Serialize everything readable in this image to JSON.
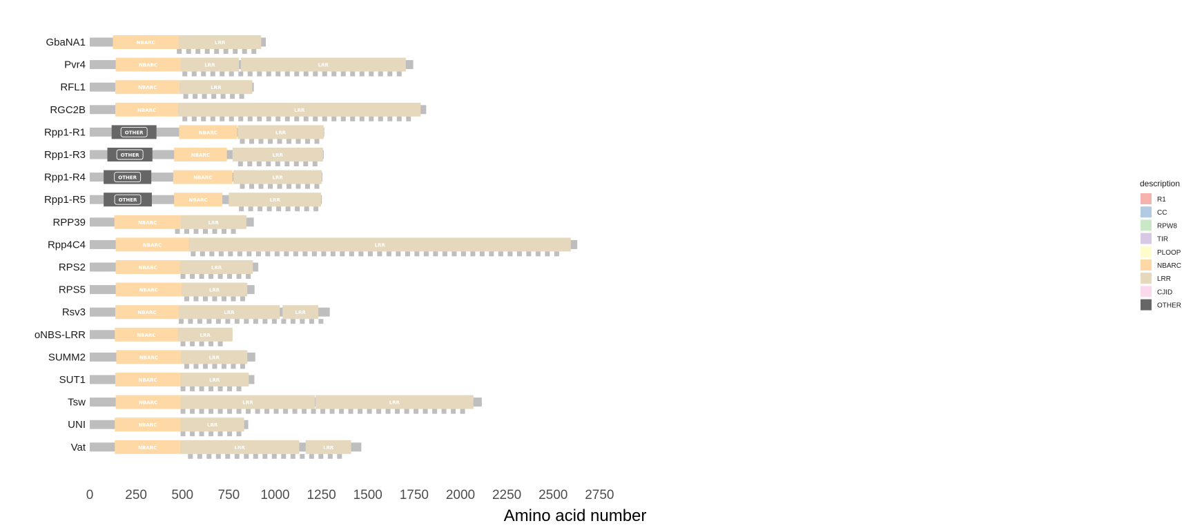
{
  "chart_data": {
    "type": "bar",
    "xlabel": "Amino acid number",
    "xlim": [
      0,
      2800
    ],
    "x_ticks": [
      0,
      250,
      500,
      750,
      1000,
      1250,
      1500,
      1750,
      2000,
      2250,
      2500,
      2750
    ],
    "legend_title": "description",
    "legend": [
      {
        "name": "R1",
        "color": "#F6B3AE"
      },
      {
        "name": "CC",
        "color": "#B2CBE3"
      },
      {
        "name": "RPW8",
        "color": "#C9E8C5"
      },
      {
        "name": "TIR",
        "color": "#D9C8E3"
      },
      {
        "name": "PLOOP",
        "color": "#FEFCCA"
      },
      {
        "name": "NBARC",
        "color": "#FED9A6"
      },
      {
        "name": "LRR",
        "color": "#E5D8BD"
      },
      {
        "name": "CJID",
        "color": "#FAD9EC"
      },
      {
        "name": "OTHER",
        "color": "#666666"
      }
    ],
    "colors": {
      "backbone": "#BEBEBE",
      "NBARC": "#FED9A6",
      "LRR": "#E5D8BD",
      "OTHER": "#666666",
      "repeat": "#BEBEBE"
    },
    "proteins": [
      {
        "name": "GbaNA1",
        "length": 950,
        "domains": [
          {
            "type": "NBARC",
            "start": 125,
            "end": 480
          },
          {
            "type": "LRR",
            "start": 480,
            "end": 925
          }
        ],
        "repeats": [
          [
            470,
            925
          ]
        ]
      },
      {
        "name": "Pvr4",
        "length": 1745,
        "domains": [
          {
            "type": "NBARC",
            "start": 140,
            "end": 490
          },
          {
            "type": "LRR",
            "start": 490,
            "end": 805
          },
          {
            "type": "LRR",
            "start": 815,
            "end": 1705
          }
        ],
        "repeats": [
          [
            500,
            1685
          ]
        ]
      },
      {
        "name": "RFL1",
        "length": 885,
        "domains": [
          {
            "type": "NBARC",
            "start": 138,
            "end": 485
          },
          {
            "type": "LRR",
            "start": 485,
            "end": 877
          }
        ],
        "repeats": [
          [
            505,
            865
          ]
        ]
      },
      {
        "name": "RGC2B",
        "length": 1815,
        "domains": [
          {
            "type": "NBARC",
            "start": 138,
            "end": 478
          },
          {
            "type": "LRR",
            "start": 478,
            "end": 1785
          }
        ],
        "repeats": [
          [
            500,
            1760
          ]
        ]
      },
      {
        "name": "Rpp1-R1",
        "length": 1265,
        "domains": [
          {
            "type": "OTHER",
            "start": 118,
            "end": 360
          },
          {
            "type": "NBARC",
            "start": 482,
            "end": 795
          },
          {
            "type": "LRR",
            "start": 798,
            "end": 1262
          }
        ],
        "repeats": [
          [
            810,
            1250
          ]
        ]
      },
      {
        "name": "Rpp1-R3",
        "length": 1262,
        "domains": [
          {
            "type": "OTHER",
            "start": 95,
            "end": 338
          },
          {
            "type": "NBARC",
            "start": 455,
            "end": 740
          },
          {
            "type": "LRR",
            "start": 770,
            "end": 1258
          }
        ],
        "repeats": [
          [
            800,
            1245
          ]
        ]
      },
      {
        "name": "Rpp1-R4",
        "length": 1255,
        "domains": [
          {
            "type": "OTHER",
            "start": 75,
            "end": 332
          },
          {
            "type": "NBARC",
            "start": 450,
            "end": 770
          },
          {
            "type": "LRR",
            "start": 775,
            "end": 1252
          }
        ],
        "repeats": [
          [
            810,
            1240
          ]
        ]
      },
      {
        "name": "Rpp1-R5",
        "length": 1252,
        "domains": [
          {
            "type": "OTHER",
            "start": 75,
            "end": 335
          },
          {
            "type": "NBARC",
            "start": 455,
            "end": 715
          },
          {
            "type": "LRR",
            "start": 750,
            "end": 1248
          }
        ],
        "repeats": [
          [
            805,
            1235
          ]
        ]
      },
      {
        "name": "RPP39",
        "length": 885,
        "domains": [
          {
            "type": "NBARC",
            "start": 133,
            "end": 490
          },
          {
            "type": "LRR",
            "start": 490,
            "end": 845
          }
        ],
        "repeats": [
          [
            460,
            830
          ]
        ]
      },
      {
        "name": "Rpp4C4",
        "length": 2630,
        "domains": [
          {
            "type": "NBARC",
            "start": 140,
            "end": 535
          },
          {
            "type": "LRR",
            "start": 535,
            "end": 2595
          }
        ],
        "repeats": [
          [
            545,
            2580
          ]
        ]
      },
      {
        "name": "RPS2",
        "length": 909,
        "domains": [
          {
            "type": "NBARC",
            "start": 140,
            "end": 487
          },
          {
            "type": "LRR",
            "start": 487,
            "end": 880
          }
        ],
        "repeats": [
          [
            490,
            875
          ]
        ]
      },
      {
        "name": "RPS5",
        "length": 889,
        "domains": [
          {
            "type": "NBARC",
            "start": 140,
            "end": 495
          },
          {
            "type": "LRR",
            "start": 495,
            "end": 850
          }
        ],
        "repeats": [
          [
            510,
            860
          ]
        ]
      },
      {
        "name": "Rsv3",
        "length": 1295,
        "domains": [
          {
            "type": "NBARC",
            "start": 138,
            "end": 480
          },
          {
            "type": "LRR",
            "start": 480,
            "end": 1025
          },
          {
            "type": "LRR",
            "start": 1040,
            "end": 1233
          }
        ],
        "repeats": [
          [
            480,
            1290
          ]
        ]
      },
      {
        "name": "oNBS-LRR",
        "length": 770,
        "domains": [
          {
            "type": "NBARC",
            "start": 135,
            "end": 475
          },
          {
            "type": "LRR",
            "start": 475,
            "end": 770
          }
        ],
        "repeats": [
          [
            490,
            750
          ]
        ]
      },
      {
        "name": "SUMM2",
        "length": 893,
        "domains": [
          {
            "type": "NBARC",
            "start": 143,
            "end": 493
          },
          {
            "type": "LRR",
            "start": 493,
            "end": 850
          }
        ],
        "repeats": [
          [
            510,
            860
          ]
        ]
      },
      {
        "name": "SUT1",
        "length": 888,
        "domains": [
          {
            "type": "NBARC",
            "start": 138,
            "end": 488
          },
          {
            "type": "LRR",
            "start": 488,
            "end": 858
          }
        ],
        "repeats": [
          [
            490,
            855
          ]
        ]
      },
      {
        "name": "Tsw",
        "length": 2115,
        "domains": [
          {
            "type": "NBARC",
            "start": 140,
            "end": 490
          },
          {
            "type": "LRR",
            "start": 490,
            "end": 1215
          },
          {
            "type": "LRR",
            "start": 1218,
            "end": 2070
          }
        ],
        "repeats": [
          [
            490,
            2025
          ]
        ]
      },
      {
        "name": "UNI",
        "length": 855,
        "domains": [
          {
            "type": "NBARC",
            "start": 135,
            "end": 490
          },
          {
            "type": "LRR",
            "start": 490,
            "end": 833
          }
        ],
        "repeats": [
          [
            490,
            833
          ]
        ]
      },
      {
        "name": "Vat",
        "length": 1465,
        "domains": [
          {
            "type": "NBARC",
            "start": 135,
            "end": 488
          },
          {
            "type": "LRR",
            "start": 488,
            "end": 1130
          },
          {
            "type": "LRR",
            "start": 1165,
            "end": 1410
          }
        ],
        "repeats": [
          [
            530,
            1405
          ]
        ]
      }
    ]
  }
}
